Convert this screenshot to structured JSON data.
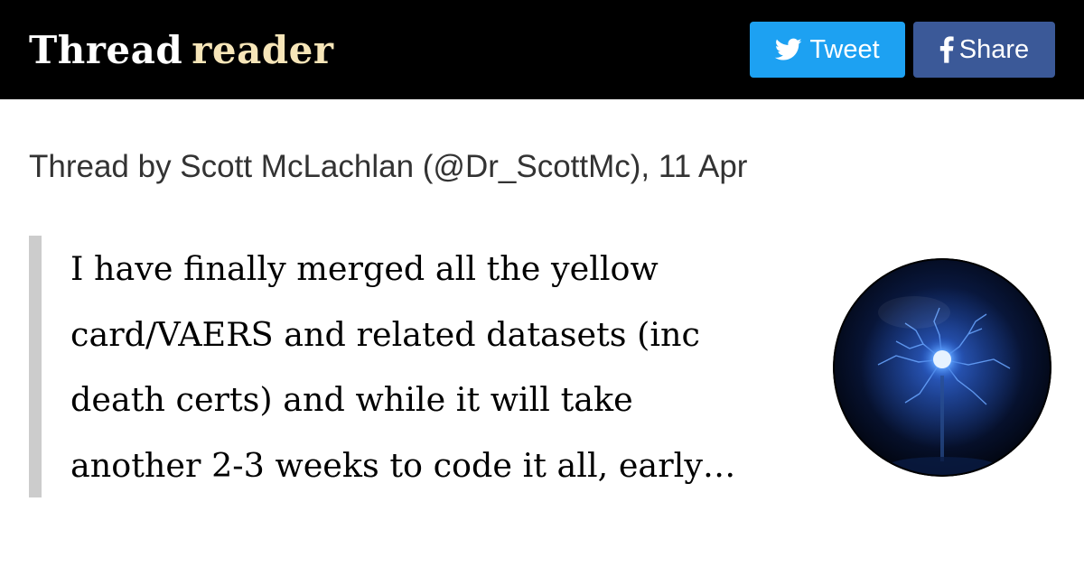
{
  "header": {
    "brand_primary": "Thread",
    "brand_secondary": "reader",
    "tweet_button": {
      "label": "Tweet",
      "icon": "twitter-bird-icon",
      "color": "#1da1f2"
    },
    "share_button": {
      "label": "Share",
      "icon": "facebook-f-icon",
      "color": "#3b5998"
    }
  },
  "byline": "Thread by Scott McLachlan (@Dr_ScottMc), 11 Apr",
  "quote": {
    "lines": [
      "I have finally merged all the yellow",
      "card/VAERS and related datasets (inc",
      "death certs) and while it will take",
      "another 2-3 weeks to code it all, early…"
    ]
  },
  "avatar": {
    "description_icon": "plasma-globe-avatar"
  }
}
